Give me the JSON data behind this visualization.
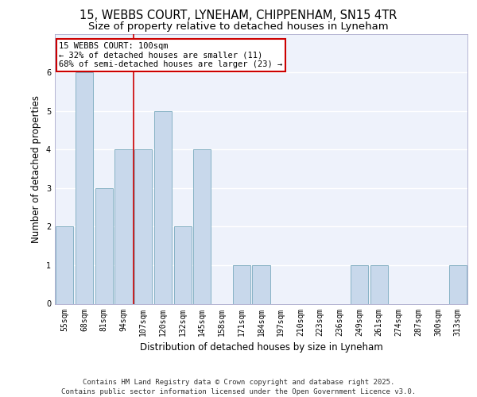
{
  "title": "15, WEBBS COURT, LYNEHAM, CHIPPENHAM, SN15 4TR",
  "subtitle": "Size of property relative to detached houses in Lyneham",
  "xlabel": "Distribution of detached houses by size in Lyneham",
  "ylabel": "Number of detached properties",
  "categories": [
    "55sqm",
    "68sqm",
    "81sqm",
    "94sqm",
    "107sqm",
    "120sqm",
    "132sqm",
    "145sqm",
    "158sqm",
    "171sqm",
    "184sqm",
    "197sqm",
    "210sqm",
    "223sqm",
    "236sqm",
    "249sqm",
    "261sqm",
    "274sqm",
    "287sqm",
    "300sqm",
    "313sqm"
  ],
  "values": [
    2,
    6,
    3,
    4,
    4,
    5,
    2,
    4,
    0,
    1,
    1,
    0,
    0,
    0,
    0,
    1,
    1,
    0,
    0,
    0,
    1
  ],
  "bar_color": "#c8d8eb",
  "bar_edgecolor": "#7aaabe",
  "bar_linewidth": 0.6,
  "redline_x": 3.5,
  "annotation_text": "15 WEBBS COURT: 100sqm\n← 32% of detached houses are smaller (11)\n68% of semi-detached houses are larger (23) →",
  "annotation_box_edgecolor": "#cc0000",
  "annotation_box_facecolor": "#ffffff",
  "redline_color": "#cc0000",
  "redline_linewidth": 1.2,
  "ylim": [
    0,
    7
  ],
  "yticks": [
    0,
    1,
    2,
    3,
    4,
    5,
    6
  ],
  "background_color": "#eef2fb",
  "grid_color": "#ffffff",
  "footer": "Contains HM Land Registry data © Crown copyright and database right 2025.\nContains public sector information licensed under the Open Government Licence v3.0.",
  "title_fontsize": 10.5,
  "subtitle_fontsize": 9.5,
  "xlabel_fontsize": 8.5,
  "ylabel_fontsize": 8.5,
  "tick_fontsize": 7,
  "footer_fontsize": 6.5,
  "annot_fontsize": 7.5
}
